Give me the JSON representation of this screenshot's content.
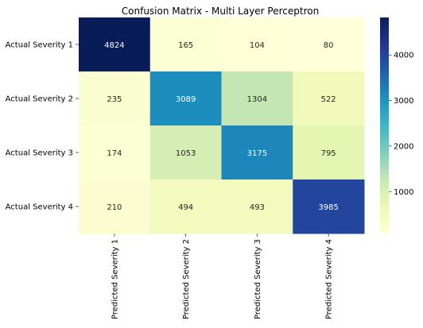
{
  "chart_data": {
    "type": "heatmap",
    "title": "Confusion Matrix - Multi Layer Perceptron",
    "xlabel": "",
    "ylabel": "",
    "row_labels": [
      "Actual Severity 1",
      "Actual Severity 2",
      "Actual Severity 3",
      "Actual Severity 4"
    ],
    "col_labels": [
      "Predicted Severity 1",
      "Predicted Severity 2",
      "Predicted Severity 3",
      "Predicted Severity 4"
    ],
    "values": [
      [
        4824,
        165,
        104,
        80
      ],
      [
        235,
        3089,
        1304,
        522
      ],
      [
        174,
        1053,
        3175,
        795
      ],
      [
        210,
        494,
        493,
        3985
      ]
    ],
    "colorbar": {
      "colormap": "YlGnBu",
      "vmin": 80,
      "vmax": 4824,
      "ticks": [
        "1000",
        "2000",
        "3000",
        "4000"
      ],
      "tick_values": [
        1000,
        2000,
        3000,
        4000
      ]
    },
    "grid": false
  }
}
